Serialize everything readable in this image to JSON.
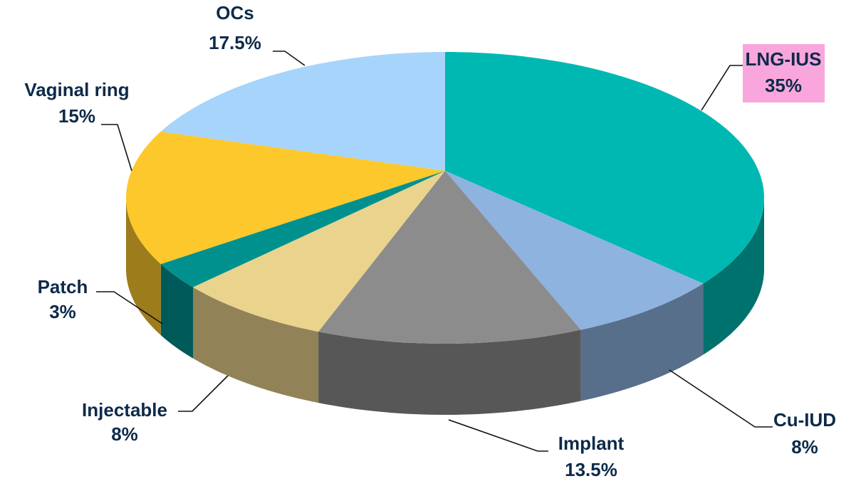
{
  "chart_data": {
    "type": "pie",
    "categories": [
      "LNG-IUS",
      "Cu-IUD",
      "Implant",
      "Injectable",
      "Patch",
      "Vaginal ring",
      "OCs"
    ],
    "values": [
      35,
      8,
      13.5,
      8,
      3,
      15,
      17.5
    ],
    "value_labels": [
      "35%",
      "8%",
      "13.5%",
      "8%",
      "3%",
      "15%",
      "17.5%"
    ],
    "colors": [
      "#00b8b2",
      "#8db3de",
      "#8c8c8c",
      "#ead38c",
      "#00918f",
      "#fdc82b",
      "#a7d4fa"
    ],
    "label_highlight": {
      "index": 0,
      "color": "#f9a6dc"
    }
  }
}
